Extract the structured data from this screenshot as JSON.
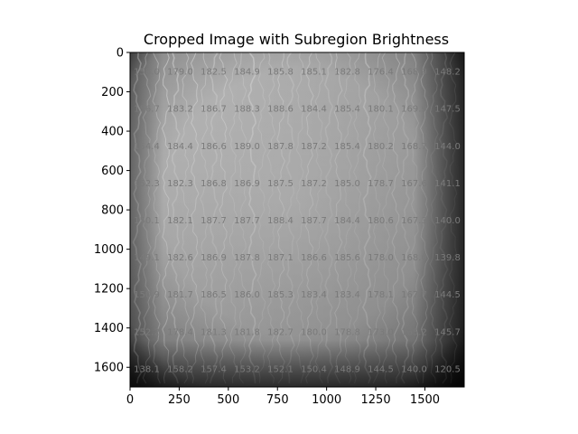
{
  "chart_data": {
    "type": "heatmap",
    "title": "Cropped Image with Subregion Brightness",
    "xlabel": "",
    "ylabel": "",
    "xlim": [
      0,
      1700
    ],
    "ylim": [
      1700,
      0
    ],
    "x_ticks": [
      0,
      250,
      500,
      750,
      1000,
      1250,
      1500
    ],
    "y_ticks": [
      0,
      200,
      400,
      600,
      800,
      1000,
      1200,
      1400,
      1600
    ],
    "grid": false,
    "colormap": "gray",
    "rows": 9,
    "cols": 10,
    "values": [
      [
        "158.0",
        "179.0",
        "182.5",
        "184.9",
        "185.8",
        "185.1",
        "182.8",
        "176.4",
        "168.9",
        "148.2"
      ],
      [
        "156.7",
        "183.2",
        "186.7",
        "188.3",
        "188.6",
        "184.4",
        "185.4",
        "180.1",
        "169.9",
        "147.5"
      ],
      [
        "154.4",
        "184.4",
        "186.6",
        "189.0",
        "187.8",
        "187.2",
        "185.4",
        "180.2",
        "168.7",
        "144.0"
      ],
      [
        "152.3",
        "182.3",
        "186.8",
        "186.9",
        "187.5",
        "187.2",
        "185.0",
        "178.7",
        "167.6",
        "141.1"
      ],
      [
        "150.1",
        "182.1",
        "187.7",
        "187.7",
        "188.4",
        "187.7",
        "184.4",
        "180.6",
        "167.3",
        "140.0"
      ],
      [
        "149.1",
        "182.6",
        "186.9",
        "187.8",
        "187.1",
        "186.6",
        "185.6",
        "178.0",
        "168.0",
        "139.8"
      ],
      [
        "150.9",
        "181.7",
        "186.5",
        "186.0",
        "185.3",
        "183.4",
        "183.4",
        "178.1",
        "167.7",
        "144.5"
      ],
      [
        "152.2",
        "178.4",
        "181.3",
        "181.8",
        "182.7",
        "180.0",
        "178.8",
        "173.0",
        "165.2",
        "145.7"
      ],
      [
        "138.1",
        "158.2",
        "157.4",
        "153.2",
        "152.1",
        "150.4",
        "148.9",
        "144.5",
        "140.0",
        "120.5"
      ]
    ]
  }
}
